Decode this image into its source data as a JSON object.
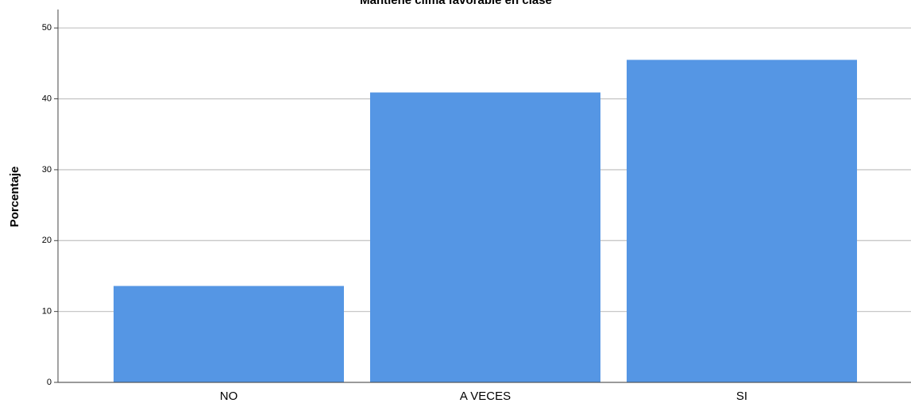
{
  "chart_data": {
    "type": "bar",
    "title": "Mantiene clima favorable en clase",
    "y_label": "Porcentaje",
    "categories": [
      "NO",
      "A VECES",
      "SI"
    ],
    "values": [
      13.6,
      40.9,
      45.5
    ],
    "color": "#5596e4",
    "ylim": [
      0,
      52.6
    ],
    "yticks": [
      0,
      10,
      20,
      30,
      40,
      50
    ],
    "grid": true
  }
}
